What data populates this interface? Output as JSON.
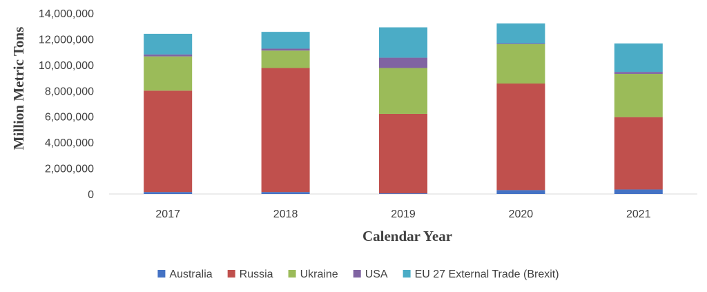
{
  "chart_data": {
    "type": "bar",
    "stacked": true,
    "xlabel": "Calendar Year",
    "ylabel": "Million Metric Tons",
    "ylim": [
      0,
      14000000
    ],
    "yticks": [
      "0",
      "2,000,000",
      "4,000,000",
      "6,000,000",
      "8,000,000",
      "10,000,000",
      "12,000,000",
      "14,000,000"
    ],
    "grid": false,
    "legend": "bottom",
    "categories": [
      "2017",
      "2018",
      "2019",
      "2020",
      "2021"
    ],
    "series": [
      {
        "name": "Australia",
        "color": "#4472c4",
        "values": [
          150000,
          150000,
          50000,
          300000,
          350000
        ]
      },
      {
        "name": "Russia",
        "color": "#c0504d",
        "values": [
          7850000,
          9600000,
          6150000,
          8250000,
          5600000
        ]
      },
      {
        "name": "Ukraine",
        "color": "#9bbb59",
        "values": [
          2650000,
          1350000,
          3550000,
          3050000,
          3350000
        ]
      },
      {
        "name": "USA",
        "color": "#8064a2",
        "values": [
          150000,
          150000,
          800000,
          50000,
          150000
        ]
      },
      {
        "name": "EU 27 External Trade (Brexit)",
        "color": "#4bacc6",
        "values": [
          1600000,
          1300000,
          2350000,
          1550000,
          2200000
        ]
      }
    ]
  }
}
